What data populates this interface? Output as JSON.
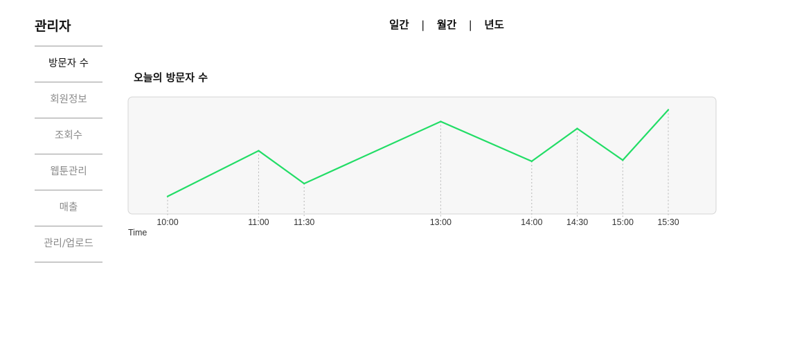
{
  "sidebar": {
    "title": "관리자",
    "items": [
      {
        "label": "방문자 수",
        "active": true
      },
      {
        "label": "회원정보",
        "active": false
      },
      {
        "label": "조회수",
        "active": false
      },
      {
        "label": "웹툰관리",
        "active": false
      },
      {
        "label": "매출",
        "active": false
      },
      {
        "label": "관리/업로드",
        "active": false
      }
    ]
  },
  "period_tabs": {
    "daily": "일간",
    "monthly": "월간",
    "yearly": "년도",
    "separator": "|"
  },
  "colors": {
    "line": "#22dd66",
    "panel_bg": "#f7f7f7",
    "panel_border": "#d6d6d6"
  },
  "chart_data": {
    "type": "line",
    "title": "오늘의 방문자 수",
    "xlabel": "Time",
    "ylabel": "",
    "grid": false,
    "x": [
      "10:00",
      "11:00",
      "11:30",
      "13:00",
      "14:00",
      "14:30",
      "15:00",
      "15:30"
    ],
    "x_minutes": [
      0,
      60,
      90,
      180,
      240,
      270,
      300,
      330
    ],
    "series": [
      {
        "values": [
          15,
          54,
          26,
          79,
          45,
          73,
          46,
          89
        ]
      }
    ],
    "ylim": [
      0,
      100
    ]
  }
}
